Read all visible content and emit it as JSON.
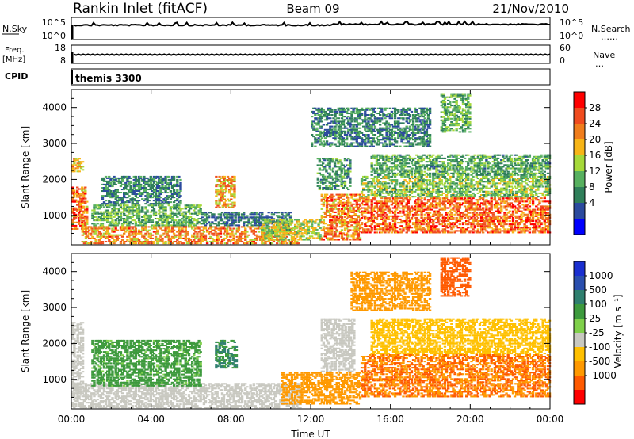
{
  "header": {
    "station": "Rankin Inlet (fitACF)",
    "beam": "Beam 09",
    "date": "21/Nov/2010"
  },
  "nsky_panel": {
    "left_label": "N.Sky",
    "left_ticks": [
      "10^5",
      "10^0"
    ],
    "right_label": "N.Search",
    "right_ticks": [
      "10^5",
      "10^0"
    ]
  },
  "freq_panel": {
    "left_label_1": "Freq.",
    "left_label_2": "[MHz]",
    "left_ticks": [
      "18",
      "8"
    ],
    "right_label": "Nave",
    "right_ticks": [
      "60",
      "0"
    ]
  },
  "cpid": {
    "label": "CPID",
    "value": "themis 3300"
  },
  "colors": {
    "power_scale": [
      "#0000ff",
      "#2b4a9e",
      "#2f7f5a",
      "#57b05f",
      "#a6d93a",
      "#f7b517",
      "#f07d1c",
      "#f04b1e",
      "#ff0000"
    ],
    "velocity_scale": [
      "#ff0000",
      "#ff5a00",
      "#ff9900",
      "#ffc000",
      "#c8c8c0",
      "#7fd04a",
      "#3d9a3d",
      "#2f7f6f",
      "#2a4fae",
      "#1a2fd0"
    ]
  },
  "chart_data": [
    {
      "type": "heatmap",
      "name": "power",
      "ylabel": "Slant Range [km]",
      "xlabel": "",
      "x_ticks": [
        "00:00",
        "04:00",
        "08:00",
        "12:00",
        "16:00",
        "20:00",
        "00:00"
      ],
      "y_ticks": [
        "1000",
        "2000",
        "3000",
        "4000"
      ],
      "ylim": [
        180,
        4500
      ],
      "xlim_hours": [
        0,
        24
      ],
      "colorbar_label": "Power [dB]",
      "colorbar_ticks": [
        "4",
        "8",
        "12",
        "16",
        "20",
        "24",
        "28"
      ],
      "regions": [
        {
          "t0": 0.0,
          "t1": 0.8,
          "r0": 600,
          "r1": 1800,
          "v": 27
        },
        {
          "t0": 0.0,
          "t1": 0.6,
          "r0": 2200,
          "r1": 2600,
          "v": 22
        },
        {
          "t0": 0.5,
          "t1": 11.5,
          "r0": 200,
          "r1": 700,
          "v": 25
        },
        {
          "t0": 1.0,
          "t1": 6.5,
          "r0": 700,
          "r1": 1300,
          "v": 14
        },
        {
          "t0": 1.5,
          "t1": 5.5,
          "r0": 1300,
          "r1": 2100,
          "v": 10
        },
        {
          "t0": 7.2,
          "t1": 8.2,
          "r0": 1200,
          "r1": 2100,
          "v": 24
        },
        {
          "t0": 6.5,
          "t1": 11.0,
          "r0": 700,
          "r1": 1100,
          "v": 9
        },
        {
          "t0": 9.5,
          "t1": 12.5,
          "r0": 300,
          "r1": 900,
          "v": 18
        },
        {
          "t0": 12.5,
          "t1": 14.5,
          "r0": 300,
          "r1": 1600,
          "v": 26
        },
        {
          "t0": 12.3,
          "t1": 14.0,
          "r0": 1700,
          "r1": 2600,
          "v": 12
        },
        {
          "t0": 14.5,
          "t1": 24.0,
          "r0": 500,
          "r1": 1500,
          "v": 28
        },
        {
          "t0": 14.5,
          "t1": 24.0,
          "r0": 1500,
          "r1": 2100,
          "v": 16
        },
        {
          "t0": 15.0,
          "t1": 24.0,
          "r0": 2100,
          "r1": 2700,
          "v": 13
        },
        {
          "t0": 12.0,
          "t1": 18.0,
          "r0": 2900,
          "r1": 4000,
          "v": 10
        },
        {
          "t0": 18.5,
          "t1": 20.0,
          "r0": 3300,
          "r1": 4400,
          "v": 14
        }
      ]
    },
    {
      "type": "heatmap",
      "name": "velocity",
      "ylabel": "Slant Range [km]",
      "xlabel": "Time UT",
      "x_ticks": [
        "00:00",
        "04:00",
        "08:00",
        "12:00",
        "16:00",
        "20:00",
        "00:00"
      ],
      "y_ticks": [
        "1000",
        "2000",
        "3000",
        "4000"
      ],
      "ylim": [
        180,
        4500
      ],
      "xlim_hours": [
        0,
        24
      ],
      "colorbar_label": "Velocity [m s⁻¹]",
      "colorbar_ticks": [
        "1000",
        "500",
        "100",
        "25",
        "-25",
        "-100",
        "-500",
        "-1000"
      ],
      "regions": [
        {
          "t0": 0.0,
          "t1": 11.5,
          "r0": 200,
          "r1": 900,
          "v": 0
        },
        {
          "t0": 0.0,
          "t1": 0.6,
          "r0": 600,
          "r1": 2600,
          "v": 0
        },
        {
          "t0": 1.0,
          "t1": 6.5,
          "r0": 800,
          "r1": 2100,
          "v": 120
        },
        {
          "t0": 7.2,
          "t1": 8.3,
          "r0": 1300,
          "r1": 2100,
          "v": 300
        },
        {
          "t0": 10.5,
          "t1": 14.5,
          "r0": 300,
          "r1": 1200,
          "v": -150
        },
        {
          "t0": 12.5,
          "t1": 14.2,
          "r0": 1200,
          "r1": 2700,
          "v": 10
        },
        {
          "t0": 14.5,
          "t1": 24.0,
          "r0": 500,
          "r1": 1700,
          "v": -200
        },
        {
          "t0": 15.0,
          "t1": 24.0,
          "r0": 1700,
          "r1": 2700,
          "v": -80
        },
        {
          "t0": 14.0,
          "t1": 18.0,
          "r0": 2900,
          "r1": 4000,
          "v": -150
        },
        {
          "t0": 18.5,
          "t1": 20.0,
          "r0": 3300,
          "r1": 4400,
          "v": -250
        }
      ]
    }
  ]
}
